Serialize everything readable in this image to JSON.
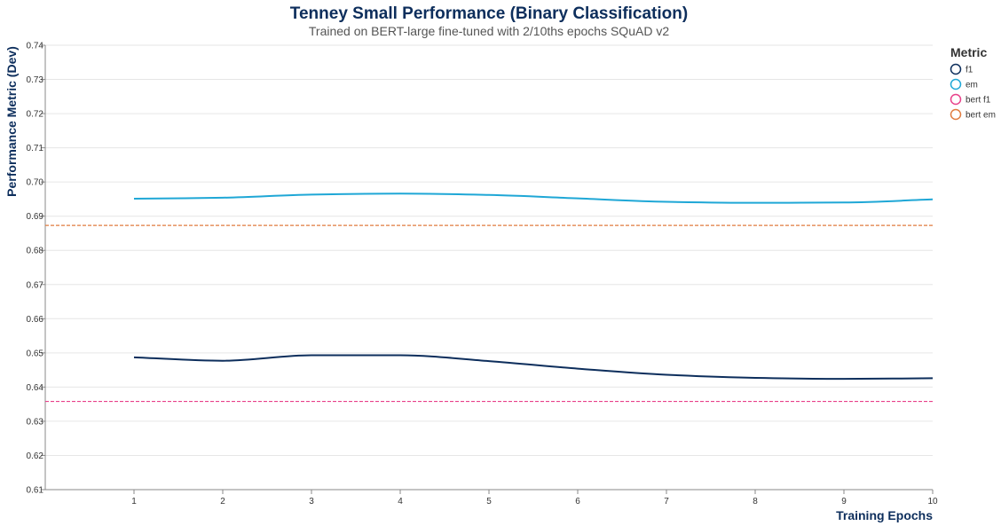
{
  "chart_data": {
    "type": "line",
    "title": "Tenney Small Performance (Binary Classification)",
    "subtitle": "Trained on BERT-large fine-tuned with 2/10ths epochs SQuAD v2",
    "xlabel": "Training Epochs",
    "ylabel": "Performance Metric (Dev)",
    "x": [
      1,
      2,
      3,
      4,
      5,
      6,
      7,
      8,
      9,
      10
    ],
    "xlim": [
      0,
      10
    ],
    "ylim": [
      0.61,
      0.74
    ],
    "yticks": [
      "0.61",
      "0.62",
      "0.63",
      "0.64",
      "0.65",
      "0.66",
      "0.67",
      "0.68",
      "0.69",
      "0.70",
      "0.71",
      "0.72",
      "0.73",
      "0.74"
    ],
    "yticks_values": [
      0.61,
      0.62,
      0.63,
      0.64,
      0.65,
      0.66,
      0.67,
      0.68,
      0.69,
      0.7,
      0.71,
      0.72,
      0.73,
      0.74
    ],
    "xticks": [
      "1",
      "2",
      "3",
      "4",
      "5",
      "6",
      "7",
      "8",
      "9",
      "10"
    ],
    "grid": true,
    "legend": {
      "title": "Metric",
      "position": "top-right"
    },
    "series": [
      {
        "name": "f1",
        "color": "#0d2e5c",
        "dashed": false,
        "values": [
          0.6487,
          0.6477,
          0.6493,
          0.6493,
          0.6476,
          0.6454,
          0.6436,
          0.6427,
          0.6424,
          0.6426
        ]
      },
      {
        "name": "em",
        "color": "#1fa7d6",
        "dashed": false,
        "values": [
          0.6951,
          0.6954,
          0.6963,
          0.6966,
          0.6962,
          0.6952,
          0.6942,
          0.6939,
          0.694,
          0.6949
        ]
      },
      {
        "name": "bert f1",
        "color": "#e8418a",
        "dashed": true,
        "constant": 0.6358
      },
      {
        "name": "bert em",
        "color": "#e07b3f",
        "dashed": true,
        "constant": 0.6873
      }
    ]
  }
}
